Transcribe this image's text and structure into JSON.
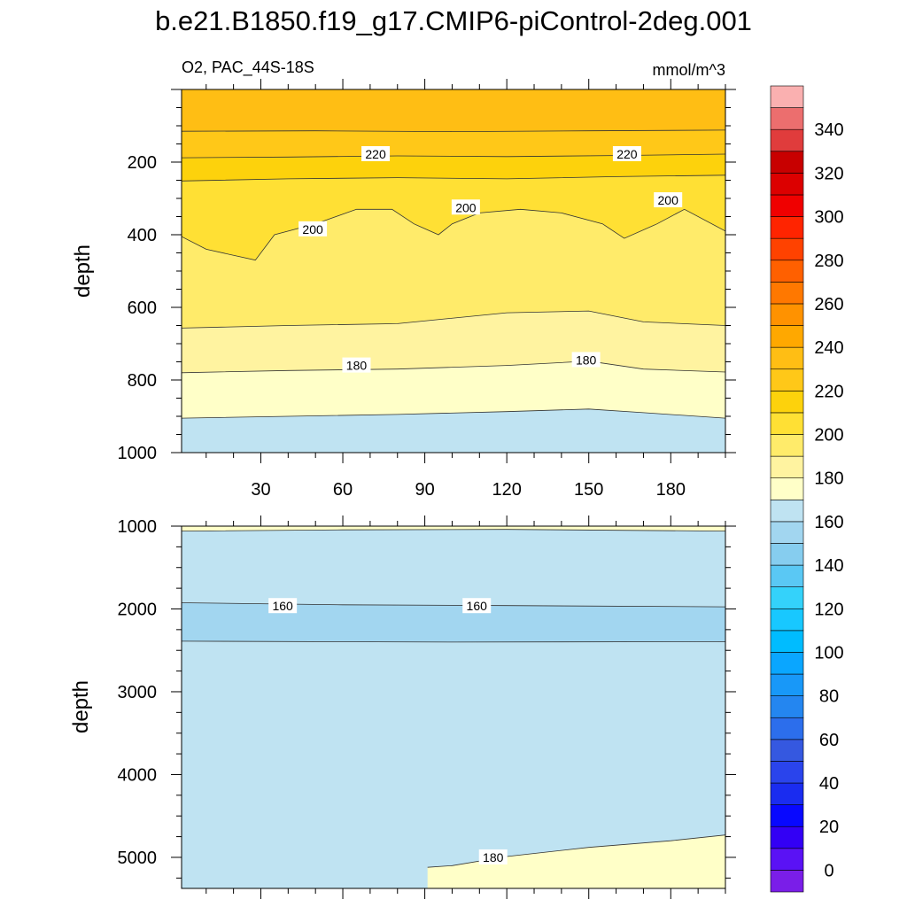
{
  "chart_data": {
    "type": "contour",
    "title": "b.e21.B1850.f19_g17.CMIP6-piControl-2deg.001",
    "variable_label": "O2, PAC_44S-18S",
    "units": "mmol/m^3",
    "xlim": [
      1,
      200
    ],
    "x_ticks": [
      "30",
      "60",
      "90",
      "120",
      "150",
      "180"
    ],
    "x_tick_values": [
      30,
      60,
      90,
      120,
      150,
      180
    ],
    "panels": [
      {
        "ylabel": "depth",
        "ylim": [
          0,
          1000
        ],
        "y_ticks": [
          "200",
          "400",
          "600",
          "800",
          "1000"
        ],
        "y_tick_values": [
          200,
          400,
          600,
          800,
          1000
        ],
        "contours": [
          {
            "level": 230,
            "depth_points": [
              [
                1,
                115
              ],
              [
                50,
                114
              ],
              [
                100,
                116
              ],
              [
                150,
                114
              ],
              [
                200,
                112
              ]
            ]
          },
          {
            "level": 220,
            "depth_points": [
              [
                1,
                188
              ],
              [
                40,
                186
              ],
              [
                80,
                183
              ],
              [
                120,
                185
              ],
              [
                160,
                182
              ],
              [
                200,
                178
              ]
            ]
          },
          {
            "level": 210,
            "depth_points": [
              [
                1,
                252
              ],
              [
                40,
                246
              ],
              [
                80,
                243
              ],
              [
                120,
                246
              ],
              [
                160,
                240
              ],
              [
                200,
                236
              ]
            ]
          },
          {
            "level": 200,
            "depth_points": [
              [
                1,
                405
              ],
              [
                10,
                440
              ],
              [
                28,
                470
              ],
              [
                35,
                400
              ],
              [
                50,
                370
              ],
              [
                65,
                330
              ],
              [
                78,
                330
              ],
              [
                86,
                370
              ],
              [
                95,
                400
              ],
              [
                100,
                370
              ],
              [
                110,
                340
              ],
              [
                125,
                330
              ],
              [
                140,
                340
              ],
              [
                155,
                370
              ],
              [
                163,
                410
              ],
              [
                175,
                370
              ],
              [
                185,
                330
              ],
              [
                200,
                390
              ]
            ]
          },
          {
            "level": 190,
            "depth_points": [
              [
                1,
                657
              ],
              [
                40,
                650
              ],
              [
                80,
                645
              ],
              [
                120,
                615
              ],
              [
                150,
                610
              ],
              [
                170,
                640
              ],
              [
                200,
                650
              ]
            ]
          },
          {
            "level": 180,
            "depth_points": [
              [
                1,
                780
              ],
              [
                40,
                774
              ],
              [
                80,
                770
              ],
              [
                120,
                760
              ],
              [
                150,
                748
              ],
              [
                170,
                770
              ],
              [
                200,
                778
              ]
            ]
          },
          {
            "level": 170,
            "depth_points": [
              [
                1,
                905
              ],
              [
                40,
                900
              ],
              [
                80,
                895
              ],
              [
                120,
                887
              ],
              [
                150,
                880
              ],
              [
                170,
                890
              ],
              [
                200,
                905
              ]
            ]
          }
        ],
        "contour_labels": [
          {
            "text": "220",
            "x": 72,
            "depth": 178
          },
          {
            "text": "220",
            "x": 164,
            "depth": 178
          },
          {
            "text": "200",
            "x": 49,
            "depth": 385
          },
          {
            "text": "200",
            "x": 105,
            "depth": 325
          },
          {
            "text": "200",
            "x": 179,
            "depth": 305
          },
          {
            "text": "180",
            "x": 65,
            "depth": 760
          },
          {
            "text": "180",
            "x": 149,
            "depth": 745
          }
        ]
      },
      {
        "ylabel": "depth",
        "ylim": [
          1000,
          5375
        ],
        "y_ticks": [
          "1000",
          "2000",
          "3000",
          "4000",
          "5000"
        ],
        "y_tick_values": [
          1000,
          2000,
          3000,
          4000,
          5000
        ],
        "contours": [
          {
            "level": 170,
            "depth_points": [
              [
                1,
                1060
              ],
              [
                60,
                1045
              ],
              [
                120,
                1040
              ],
              [
                200,
                1060
              ]
            ]
          },
          {
            "level": 160,
            "depth_points": [
              [
                1,
                1925
              ],
              [
                60,
                1950
              ],
              [
                120,
                1960
              ],
              [
                200,
                1975
              ]
            ]
          },
          {
            "level": 170,
            "depth_points": [
              [
                1,
                2390
              ],
              [
                100,
                2400
              ],
              [
                200,
                2395
              ]
            ]
          },
          {
            "level": 180,
            "depth_points": [
              [
                91,
                5120
              ],
              [
                100,
                5100
              ],
              [
                120,
                4990
              ],
              [
                150,
                4880
              ],
              [
                180,
                4800
              ],
              [
                200,
                4730
              ]
            ]
          }
        ],
        "contour_labels": [
          {
            "text": "160",
            "x": 38,
            "depth": 1965
          },
          {
            "text": "160",
            "x": 109,
            "depth": 1965
          },
          {
            "text": "180",
            "x": 115,
            "depth": 5000
          }
        ]
      }
    ],
    "colorbar": {
      "ticks": [
        "0",
        "20",
        "40",
        "60",
        "80",
        "100",
        "120",
        "140",
        "160",
        "180",
        "200",
        "220",
        "240",
        "260",
        "280",
        "300",
        "320",
        "340"
      ],
      "tick_values": [
        0,
        20,
        40,
        60,
        80,
        100,
        120,
        140,
        160,
        180,
        200,
        220,
        240,
        260,
        280,
        300,
        320,
        340
      ],
      "levels": [
        -10,
        0,
        10,
        20,
        30,
        40,
        50,
        60,
        70,
        80,
        90,
        100,
        110,
        120,
        130,
        140,
        150,
        160,
        170,
        180,
        190,
        200,
        210,
        220,
        230,
        240,
        250,
        260,
        270,
        280,
        290,
        300,
        310,
        320,
        330,
        340,
        350,
        360
      ],
      "colors": [
        "#7a1ee8",
        "#5a12f5",
        "#3300f5",
        "#0808ff",
        "#1a2cf0",
        "#2a44ec",
        "#3558e0",
        "#2c6eec",
        "#2486f0",
        "#1898f8",
        "#0aa6ff",
        "#00bcff",
        "#18c8ff",
        "#34d2fa",
        "#5ac8f4",
        "#86cdef",
        "#a2d6f0",
        "#bfe3f2",
        "#ffffc8",
        "#fff3a0",
        "#ffeb6a",
        "#ffe034",
        "#fdd20c",
        "#ffc818",
        "#ffbe14",
        "#ffa800",
        "#ff9200",
        "#ff7800",
        "#ff6000",
        "#ff4200",
        "#ff2400",
        "#f00000",
        "#dc0000",
        "#c80000",
        "#e03c3c",
        "#ec6e6e",
        "#fab0b0"
      ]
    }
  }
}
